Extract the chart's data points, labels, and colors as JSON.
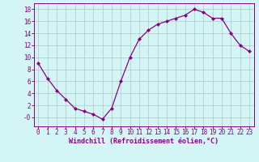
{
  "x": [
    0,
    1,
    2,
    3,
    4,
    5,
    6,
    7,
    8,
    9,
    10,
    11,
    12,
    13,
    14,
    15,
    16,
    17,
    18,
    19,
    20,
    21,
    22,
    23
  ],
  "y": [
    9.0,
    6.5,
    4.5,
    3.0,
    1.5,
    1.0,
    0.5,
    -0.3,
    1.5,
    6.0,
    10.0,
    13.0,
    14.5,
    15.5,
    16.0,
    16.5,
    17.0,
    18.0,
    17.5,
    16.5,
    16.5,
    14.0,
    12.0,
    11.0
  ],
  "line_color": "#880088",
  "marker": "D",
  "marker_size": 2.0,
  "bg_color": "#d4f5f5",
  "grid_color": "#b0c8c8",
  "xlabel": "Windchill (Refroidissement éolien,°C)",
  "xlabel_color": "#880088",
  "tick_color": "#880088",
  "spine_color": "#880088",
  "ylim": [
    -1.5,
    19.0
  ],
  "xlim": [
    -0.5,
    23.5
  ],
  "yticks": [
    0,
    2,
    4,
    6,
    8,
    10,
    12,
    14,
    16,
    18
  ],
  "ytick_labels": [
    "-0",
    "2",
    "4",
    "6",
    "8",
    "10",
    "12",
    "14",
    "16",
    "18"
  ],
  "xticks": [
    0,
    1,
    2,
    3,
    4,
    5,
    6,
    7,
    8,
    9,
    10,
    11,
    12,
    13,
    14,
    15,
    16,
    17,
    18,
    19,
    20,
    21,
    22,
    23
  ],
  "tick_fontsize": 5.5,
  "xlabel_fontsize": 6.0
}
